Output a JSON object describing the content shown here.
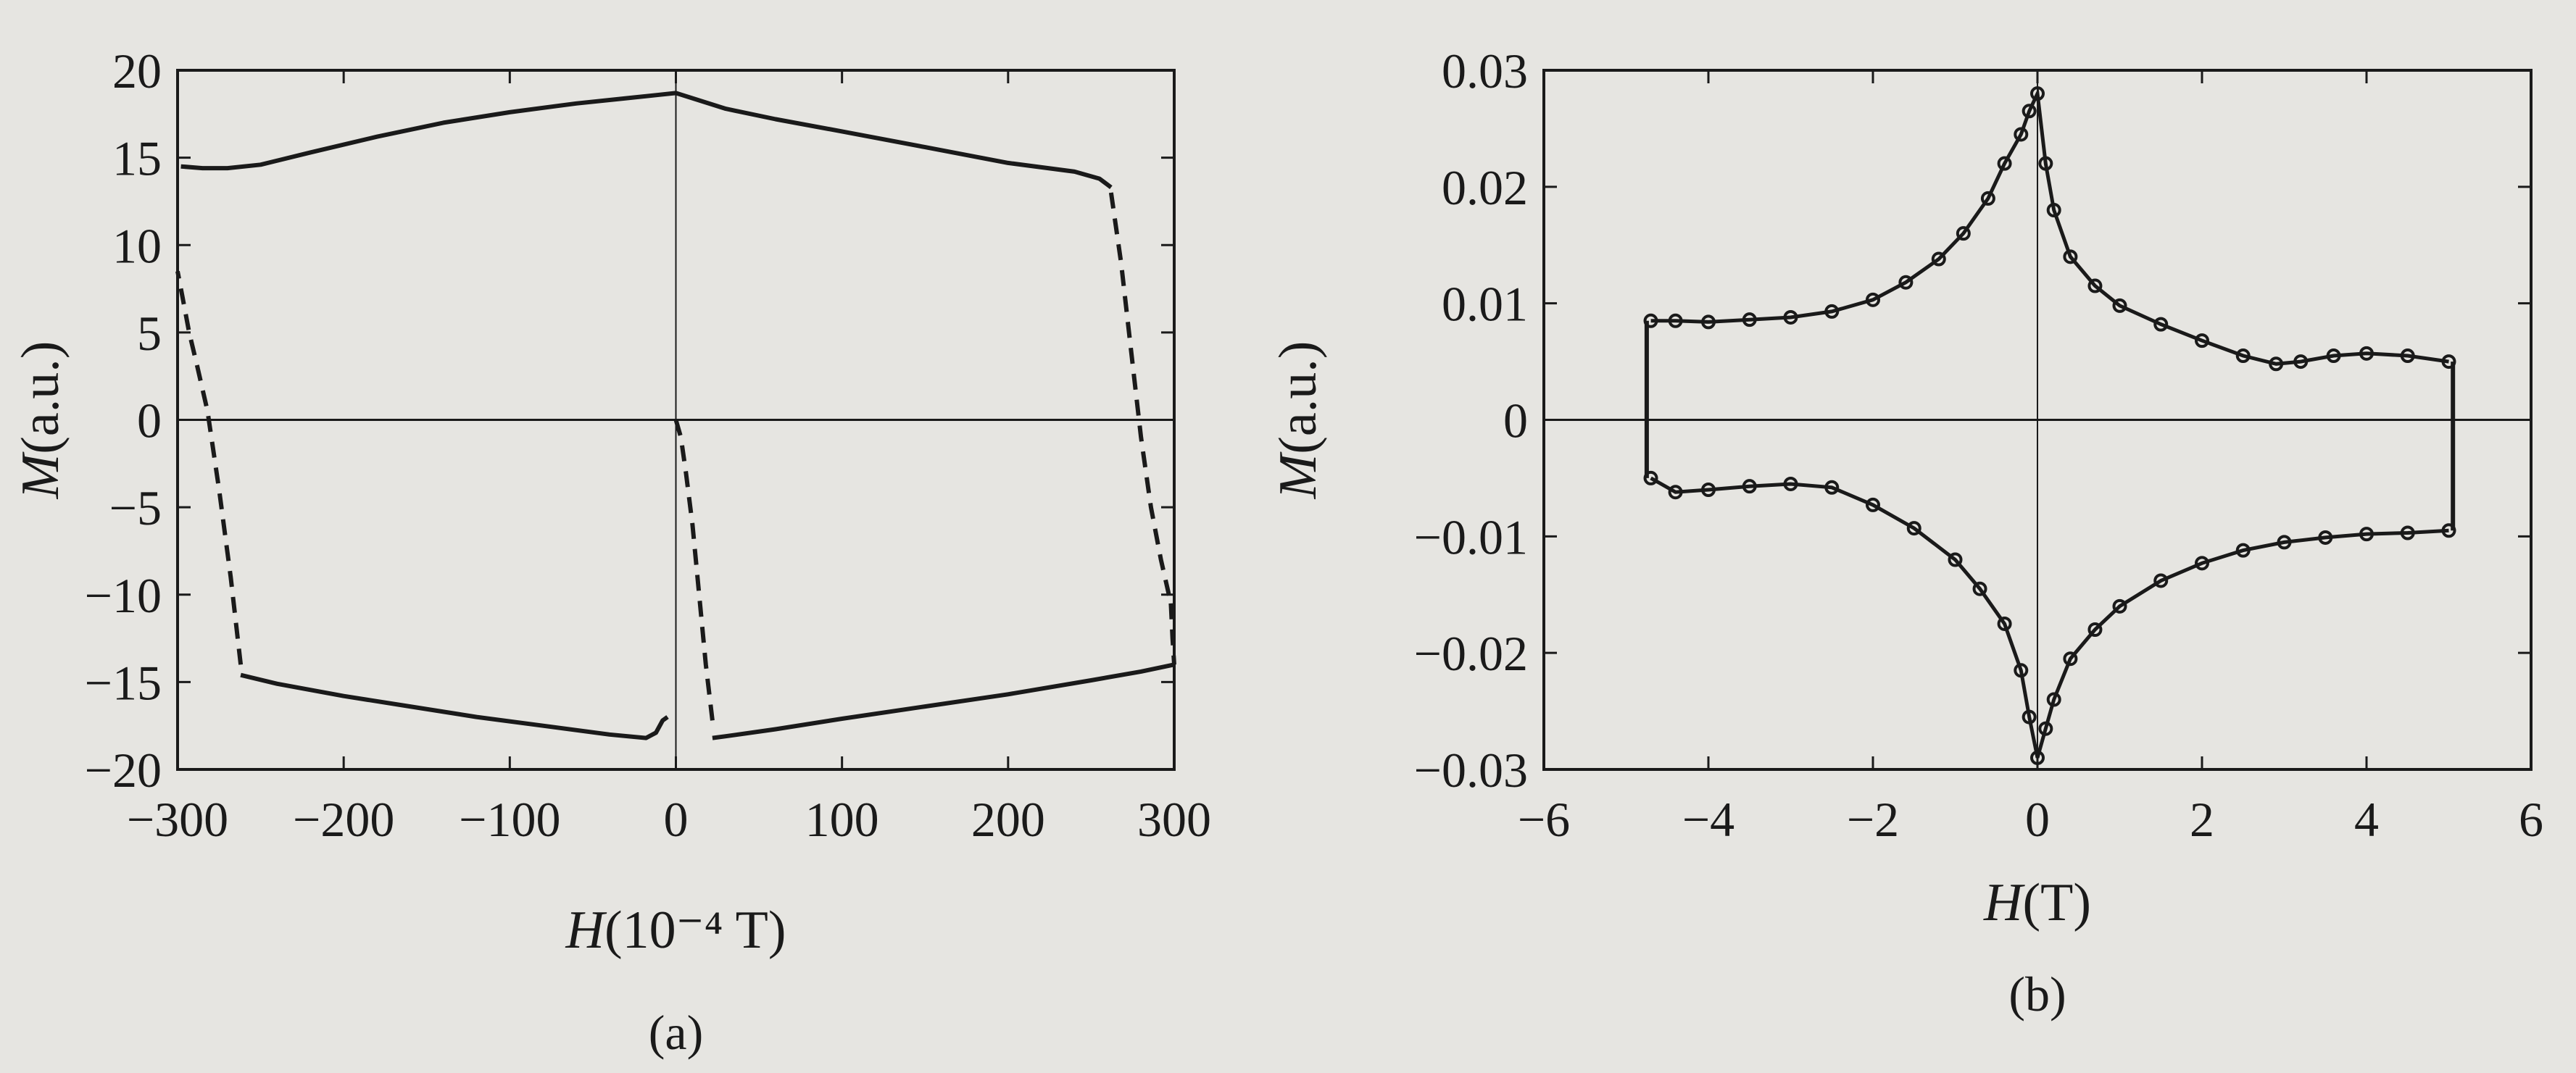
{
  "chart_data": [
    {
      "type": "line",
      "panel_label": "(a)",
      "xlabel_var": "H",
      "xlabel_unit": "(10⁻⁴ T)",
      "ylabel_var": "M",
      "ylabel_unit": "(a.u.)",
      "xlim": [
        -300,
        300
      ],
      "ylim": [
        -20,
        20
      ],
      "x_ticks": [
        -300,
        -200,
        -100,
        0,
        100,
        200,
        300
      ],
      "x_tick_labels": [
        "−300",
        "−200",
        "−100",
        "0",
        "100",
        "200",
        "300"
      ],
      "y_ticks": [
        -20,
        -15,
        -10,
        -5,
        0,
        5,
        10,
        15,
        20
      ],
      "y_tick_labels": [
        "−20",
        "−15",
        "−10",
        "−5",
        "0",
        "5",
        "10",
        "15",
        "20"
      ],
      "grid": false,
      "zero_lines": true,
      "series": [
        {
          "style": "solid",
          "x": [
            -298,
            -285,
            -270,
            -250,
            -220,
            -180,
            -140,
            -100,
            -60,
            -30,
            -10,
            0
          ],
          "y": [
            14.5,
            14.4,
            14.4,
            14.6,
            15.3,
            16.2,
            17.0,
            17.6,
            18.1,
            18.4,
            18.6,
            18.7
          ]
        },
        {
          "style": "solid",
          "x": [
            0,
            10,
            30,
            60,
            100,
            150,
            200,
            240,
            255,
            262
          ],
          "y": [
            18.7,
            18.4,
            17.8,
            17.2,
            16.5,
            15.6,
            14.7,
            14.2,
            13.8,
            13.3
          ]
        },
        {
          "style": "dashed",
          "x": [
            262,
            268,
            274,
            280,
            286,
            292,
            298
          ],
          "y": [
            13.0,
            9.0,
            4.0,
            -1.0,
            -5.0,
            -8.0,
            -10.5
          ]
        },
        {
          "style": "dashed",
          "x": [
            298,
            299,
            300
          ],
          "y": [
            -10.5,
            -12.5,
            -14.0
          ]
        },
        {
          "style": "solid",
          "x": [
            300,
            280,
            250,
            200,
            150,
            100,
            60,
            30,
            22
          ],
          "y": [
            -14.0,
            -14.4,
            -14.9,
            -15.7,
            -16.4,
            -17.1,
            -17.7,
            -18.1,
            -18.2
          ]
        },
        {
          "style": "dashed",
          "x": [
            22,
            18,
            14,
            10,
            6,
            3,
            0
          ],
          "y": [
            -17.2,
            -14.0,
            -10.0,
            -6.0,
            -3.0,
            -1.0,
            0
          ]
        },
        {
          "style": "solid",
          "x": [
            -5,
            -8,
            -12,
            -18,
            -40,
            -80,
            -120,
            -160,
            -200,
            -240,
            -262
          ],
          "y": [
            -17.0,
            -17.2,
            -17.9,
            -18.2,
            -18.0,
            -17.5,
            -17.0,
            -16.4,
            -15.8,
            -15.1,
            -14.6
          ]
        },
        {
          "style": "dashed",
          "x": [
            -262,
            -268,
            -275,
            -282,
            -288,
            -293,
            -297,
            -300
          ],
          "y": [
            -14.0,
            -9.0,
            -4.0,
            0.5,
            3.0,
            5.0,
            7.0,
            8.5
          ]
        }
      ]
    },
    {
      "type": "scatter",
      "panel_label": "(b)",
      "xlabel_var": "H",
      "xlabel_unit": "(T)",
      "ylabel_var": "M",
      "ylabel_unit": "(a.u.)",
      "xlim": [
        -6,
        6
      ],
      "ylim": [
        -0.03,
        0.03
      ],
      "x_ticks": [
        -6,
        -4,
        -2,
        0,
        2,
        4,
        6
      ],
      "x_tick_labels": [
        "−6",
        "−4",
        "−2",
        "0",
        "2",
        "4",
        "6"
      ],
      "y_ticks": [
        -0.03,
        -0.02,
        -0.01,
        0,
        0.01,
        0.02,
        0.03
      ],
      "y_tick_labels": [
        "−0.03",
        "−0.02",
        "−0.01",
        "0",
        "0.01",
        "0.02",
        "0.03"
      ],
      "grid": false,
      "zero_lines": true,
      "series": [
        {
          "style": "markers",
          "x": [
            -4.7,
            -4.4,
            -4.0,
            -3.5,
            -3.0,
            -2.5,
            -2.0,
            -1.6,
            -1.2,
            -0.9,
            -0.6,
            -0.4,
            -0.2,
            -0.1,
            0.0,
            0.1,
            0.2,
            0.4,
            0.7,
            1.0,
            1.5,
            2.0,
            2.5,
            2.9,
            3.2,
            3.6,
            4.0,
            4.5,
            5.0
          ],
          "y": [
            0.0085,
            0.0085,
            0.0084,
            0.0086,
            0.0088,
            0.0093,
            0.0103,
            0.0118,
            0.0138,
            0.016,
            0.019,
            0.022,
            0.0245,
            0.0265,
            0.028,
            0.022,
            0.018,
            0.014,
            0.0115,
            0.0098,
            0.0082,
            0.0068,
            0.0055,
            0.0048,
            0.005,
            0.0055,
            0.0057,
            0.0055,
            0.005
          ]
        },
        {
          "style": "markers",
          "x": [
            5.0,
            4.5,
            4.0,
            3.5,
            3.0,
            2.5,
            2.0,
            1.5,
            1.0,
            0.7,
            0.4,
            0.2,
            0.1,
            0.0,
            -0.1,
            -0.2,
            -0.4,
            -0.7,
            -1.0,
            -1.5,
            -2.0,
            -2.5,
            -3.0,
            -3.5,
            -4.0,
            -4.4,
            -4.7
          ],
          "y": [
            -0.0095,
            -0.0097,
            -0.0098,
            -0.0101,
            -0.0105,
            -0.0112,
            -0.0123,
            -0.0138,
            -0.016,
            -0.018,
            -0.0205,
            -0.024,
            -0.0265,
            -0.029,
            -0.0255,
            -0.0215,
            -0.0175,
            -0.0145,
            -0.012,
            -0.0093,
            -0.0073,
            -0.0058,
            -0.0055,
            -0.0057,
            -0.006,
            -0.0062,
            -0.005
          ]
        },
        {
          "style": "line",
          "x": [
            -4.75,
            -4.75
          ],
          "y": [
            0.0085,
            -0.005
          ]
        },
        {
          "style": "line",
          "x": [
            5.05,
            5.05
          ],
          "y": [
            0.005,
            -0.0095
          ]
        }
      ]
    }
  ]
}
